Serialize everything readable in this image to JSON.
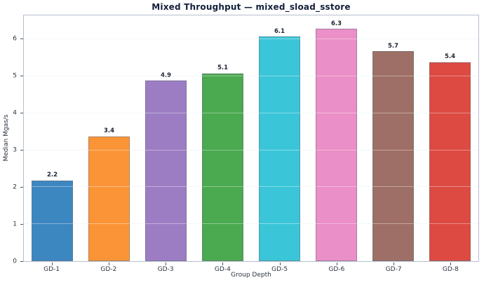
{
  "chart_data": {
    "type": "bar",
    "title": "Mixed Throughput — mixed_sload_sstore",
    "xlabel": "Group Depth",
    "ylabel": "Median Mgas/s",
    "categories": [
      "GD-1",
      "GD-2",
      "GD-3",
      "GD-4",
      "GD-5",
      "GD-6",
      "GD-7",
      "GD-8"
    ],
    "values": [
      2.2,
      3.4,
      4.9,
      5.1,
      6.1,
      6.3,
      5.7,
      5.4
    ],
    "value_labels": [
      "2.2",
      "3.4",
      "4.9",
      "5.1",
      "6.1",
      "6.3",
      "5.7",
      "5.4"
    ],
    "bar_colors": [
      "#3d87c1",
      "#fb9437",
      "#9c7dc4",
      "#4ba94f",
      "#3ac6d8",
      "#ea8fc7",
      "#9e6f66",
      "#dc4a42"
    ],
    "yticks": [
      0,
      1,
      2,
      3,
      4,
      5,
      6
    ],
    "ylim": [
      0,
      6.65
    ],
    "grid": true,
    "legend": null
  },
  "style_colors": {
    "title_text": "#14203a",
    "tick_text": "#2b3442",
    "value_label_text": "#1b2433",
    "spine": "#b6c0ce",
    "gridline_under": "#eef1f5",
    "bar_edge": "rgba(108,114,126,0.55)"
  }
}
